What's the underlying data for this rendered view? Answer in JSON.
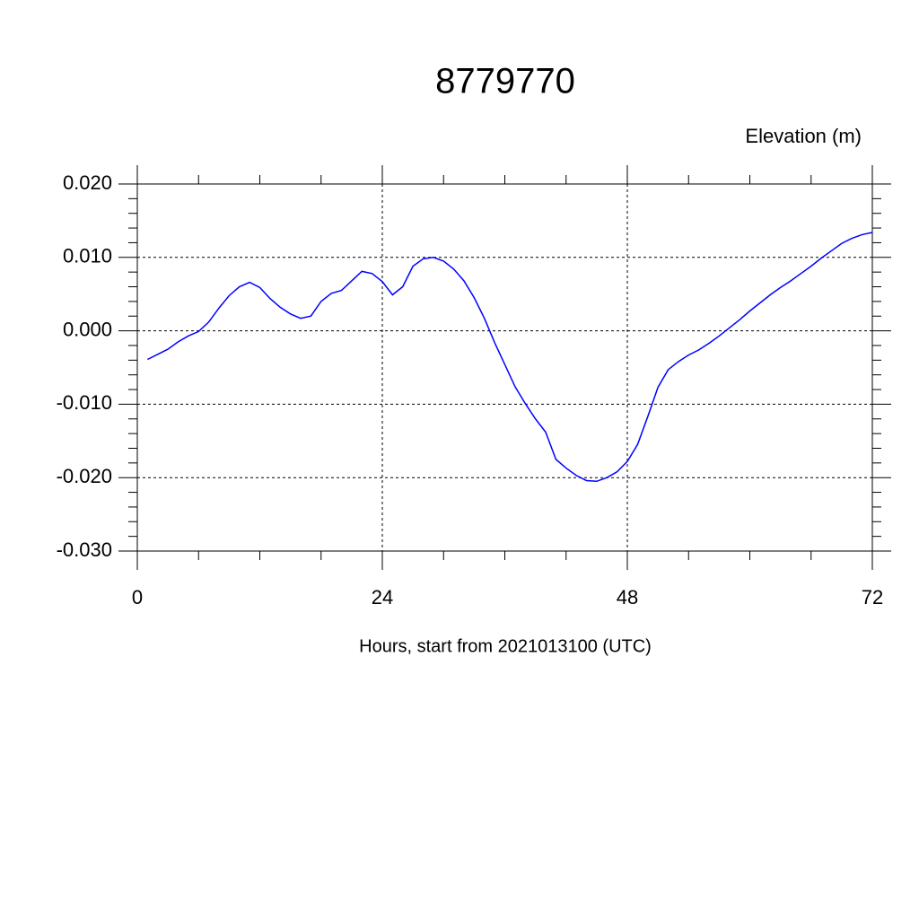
{
  "chart_data": {
    "type": "line",
    "title": "8779770",
    "y_label": "Elevation (m)",
    "x_label": "Hours, start from 2021013100 (UTC)",
    "x": [
      1,
      2,
      3,
      4,
      5,
      6,
      7,
      8,
      9,
      10,
      11,
      12,
      13,
      14,
      15,
      16,
      17,
      18,
      19,
      20,
      21,
      22,
      23,
      24,
      25,
      26,
      27,
      28,
      29,
      30,
      31,
      32,
      33,
      34,
      35,
      36,
      37,
      38,
      39,
      40,
      41,
      42,
      43,
      44,
      45,
      46,
      47,
      48,
      49,
      50,
      51,
      52,
      53,
      54,
      55,
      56,
      57,
      58,
      59,
      60,
      61,
      62,
      63,
      64,
      65,
      66,
      67,
      68,
      69,
      70,
      71,
      72
    ],
    "series": [
      {
        "name": "Elevation",
        "color": "#0000ff",
        "values": [
          -0.0039,
          -0.0032,
          -0.0025,
          -0.0015,
          -0.0007,
          -0.0001,
          0.0012,
          0.0031,
          0.0048,
          0.006,
          0.0066,
          0.0059,
          0.0044,
          0.0032,
          0.0023,
          0.0017,
          0.002,
          0.004,
          0.0051,
          0.0055,
          0.0068,
          0.0081,
          0.0078,
          0.0067,
          0.0049,
          0.006,
          0.0088,
          0.0098,
          0.01,
          0.0095,
          0.0084,
          0.0068,
          0.0045,
          0.0017,
          -0.0016,
          -0.0046,
          -0.0076,
          -0.0099,
          -0.012,
          -0.0138,
          -0.0175,
          -0.0187,
          -0.0197,
          -0.0204,
          -0.0205,
          -0.02,
          -0.0192,
          -0.0178,
          -0.0155,
          -0.0117,
          -0.0077,
          -0.0053,
          -0.0042,
          -0.0033,
          -0.0026,
          -0.0017,
          -0.0007,
          0.0004,
          0.0015,
          0.0027,
          0.0038,
          0.0049,
          0.0059,
          0.0068,
          0.0078,
          0.0088,
          0.0099,
          0.0109,
          0.0119,
          0.0126,
          0.0131,
          0.0134
        ]
      }
    ],
    "xlim": [
      0,
      72
    ],
    "xticks": [
      0,
      24,
      48,
      72
    ],
    "ylim": [
      -0.03,
      0.02
    ],
    "yticks": [
      {
        "value": -0.03,
        "label": "-0.030"
      },
      {
        "value": -0.02,
        "label": "-0.020"
      },
      {
        "value": -0.01,
        "label": "-0.010"
      },
      {
        "value": 0,
        "label": "0.000"
      },
      {
        "value": 0.01,
        "label": "0.010"
      },
      {
        "value": 0.02,
        "label": "0.020"
      }
    ],
    "grid": true
  }
}
